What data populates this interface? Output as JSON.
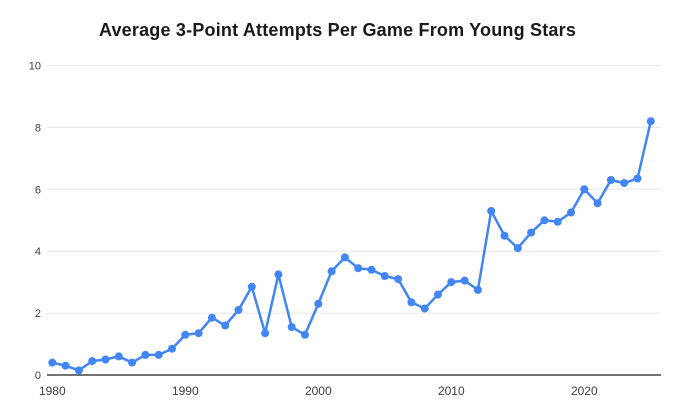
{
  "title": "Average 3-Point Attempts Per Game From Young Stars",
  "chart_data": {
    "type": "line",
    "title": "Average 3-Point Attempts Per Game From Young Stars",
    "xlabel": "",
    "ylabel": "",
    "x": [
      1980,
      1981,
      1982,
      1983,
      1984,
      1985,
      1986,
      1987,
      1988,
      1989,
      1990,
      1991,
      1992,
      1993,
      1994,
      1995,
      1996,
      1997,
      1998,
      1999,
      2000,
      2001,
      2002,
      2003,
      2004,
      2005,
      2006,
      2007,
      2008,
      2009,
      2010,
      2011,
      2012,
      2013,
      2014,
      2015,
      2016,
      2017,
      2018,
      2019,
      2020,
      2021,
      2022,
      2023,
      2024,
      2025
    ],
    "values": [
      0.4,
      0.3,
      0.15,
      0.45,
      0.5,
      0.6,
      0.4,
      0.65,
      0.65,
      0.85,
      1.3,
      1.35,
      1.85,
      1.6,
      2.1,
      2.85,
      1.35,
      3.25,
      1.55,
      1.3,
      2.3,
      3.35,
      3.8,
      3.45,
      3.4,
      3.2,
      3.1,
      2.35,
      2.15,
      2.6,
      3.0,
      3.05,
      2.75,
      5.3,
      4.5,
      4.1,
      4.6,
      5.0,
      4.95,
      5.25,
      6.0,
      5.55,
      6.3,
      6.2,
      6.35,
      8.2
    ],
    "ylim": [
      0,
      10
    ],
    "yticks": [
      0,
      2,
      4,
      6,
      8,
      10
    ],
    "xticks": [
      1980,
      1990,
      2000,
      2010,
      2020
    ],
    "grid": true,
    "legend": "none",
    "marker": "circle",
    "line_color": "#4285f4",
    "grid_color": "#e6e6e6",
    "axis_line_color": "#212121",
    "tick_label_color": "#404040",
    "background_color": "#ffffff"
  }
}
